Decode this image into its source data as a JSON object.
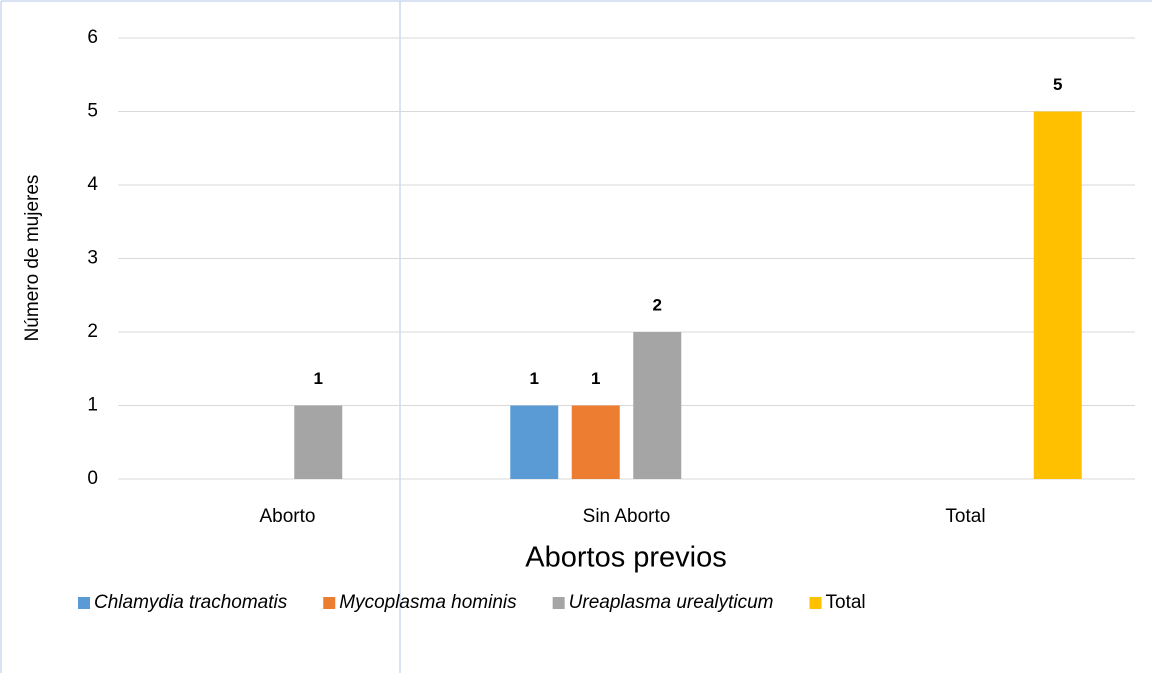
{
  "chart_data": {
    "type": "bar",
    "x_label": "Abortos previos",
    "y_label": "Número de mujeres",
    "categories": [
      "Aborto",
      "Sin Aborto",
      "Total"
    ],
    "series": [
      {
        "name": "Chlamydia trachomatis",
        "color": "#5b9bd5",
        "italic": true,
        "values": [
          null,
          1,
          null
        ]
      },
      {
        "name": "Mycoplasma hominis",
        "color": "#ed7d31",
        "italic": true,
        "values": [
          null,
          1,
          null
        ]
      },
      {
        "name": "Ureaplasma urealyticum",
        "color": "#a5a5a5",
        "italic": true,
        "values": [
          1,
          2,
          null
        ]
      },
      {
        "name": "Total",
        "color": "#ffc000",
        "italic": false,
        "values": [
          null,
          null,
          5
        ]
      }
    ],
    "ylim": [
      0,
      6
    ],
    "yticks": [
      0,
      1,
      2,
      3,
      4,
      5,
      6
    ],
    "grid": true,
    "legend": "bottom"
  }
}
